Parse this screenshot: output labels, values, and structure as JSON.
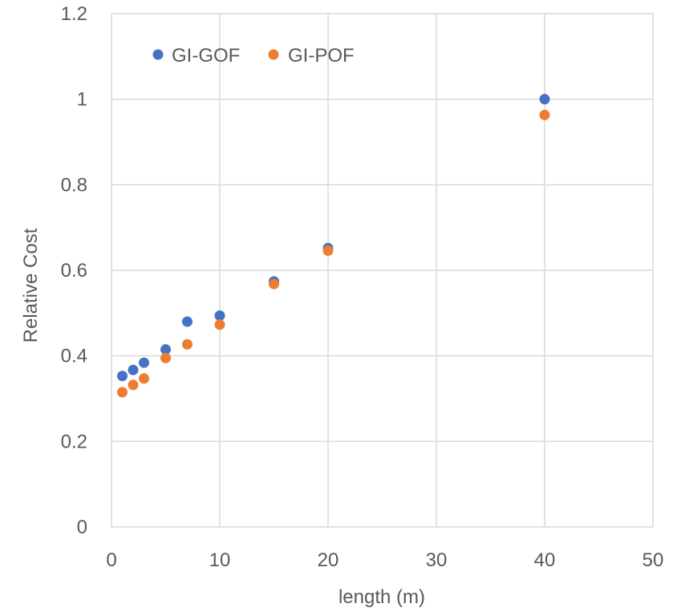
{
  "chart_data": {
    "type": "scatter",
    "title": "",
    "xlabel": "length (m)",
    "ylabel": "Relative Cost",
    "xlim": [
      0,
      50
    ],
    "ylim": [
      0,
      1.2
    ],
    "x_ticks": [
      0,
      10,
      20,
      30,
      40,
      50
    ],
    "y_ticks": [
      0,
      0.2,
      0.4,
      0.6,
      0.8,
      1,
      1.2
    ],
    "x_tick_labels": [
      "0",
      "10",
      "20",
      "30",
      "40",
      "50"
    ],
    "y_tick_labels": [
      "0",
      "0.2",
      "0.4",
      "0.6",
      "0.8",
      "1",
      "1.2"
    ],
    "grid": true,
    "legend_position": "top-left",
    "series": [
      {
        "name": "GI-GOF",
        "color": "#4472c4",
        "x": [
          1,
          2,
          3,
          5,
          7,
          10,
          15,
          20,
          40
        ],
        "y": [
          0.353,
          0.367,
          0.384,
          0.415,
          0.48,
          0.494,
          0.574,
          0.652,
          1.0
        ]
      },
      {
        "name": "GI-POF",
        "color": "#ed7d31",
        "x": [
          1,
          2,
          3,
          5,
          7,
          10,
          15,
          20,
          40
        ],
        "y": [
          0.315,
          0.332,
          0.347,
          0.395,
          0.427,
          0.473,
          0.568,
          0.646,
          0.963
        ]
      }
    ]
  }
}
